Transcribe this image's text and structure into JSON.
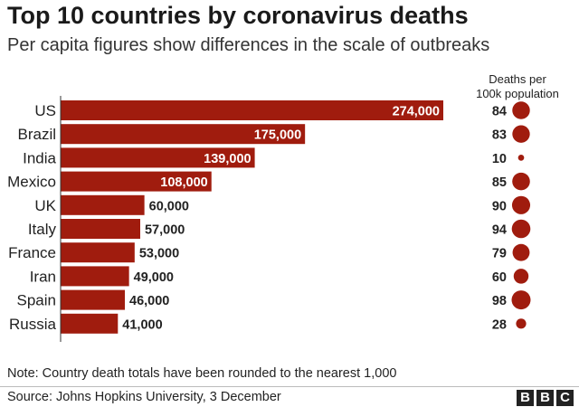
{
  "header": {
    "title": "Top 10 countries by coronavirus deaths",
    "subtitle": "Per capita figures show differences in the scale of outbreaks"
  },
  "colors": {
    "bar": "#a01c0e",
    "bubble": "#a01c0e",
    "label_inside": "#ffffff",
    "label_outside": "#222222"
  },
  "chart_data": {
    "type": "bar",
    "orientation": "horizontal",
    "categories": [
      "US",
      "Brazil",
      "India",
      "Mexico",
      "UK",
      "Italy",
      "France",
      "Iran",
      "Spain",
      "Russia"
    ],
    "values": [
      274000,
      175000,
      139000,
      108000,
      60000,
      57000,
      53000,
      49000,
      46000,
      41000
    ],
    "value_labels": [
      "274,000",
      "175,000",
      "139,000",
      "108,000",
      "60,000",
      "57,000",
      "53,000",
      "49,000",
      "46,000",
      "41,000"
    ],
    "xlim": [
      0,
      274000
    ],
    "grid": false,
    "per_capita": {
      "header": [
        "Deaths per",
        "100k population"
      ],
      "values": [
        84,
        83,
        10,
        85,
        90,
        94,
        79,
        60,
        98,
        28
      ]
    }
  },
  "footer": {
    "note": "Note: Country death totals have been rounded to the nearest 1,000",
    "source": "Source: Johns Hopkins University, 3 December",
    "logo_letters": [
      "B",
      "B",
      "C"
    ]
  }
}
